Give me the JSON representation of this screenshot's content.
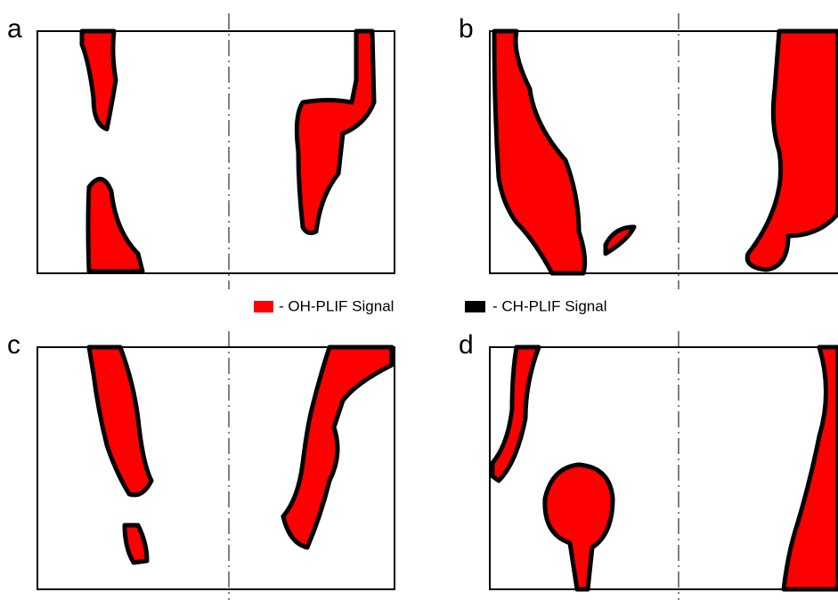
{
  "panels": [
    {
      "label": "a"
    },
    {
      "label": "b"
    },
    {
      "label": "c"
    },
    {
      "label": "d"
    }
  ],
  "legend": [
    {
      "label": "- OH-PLIF Signal",
      "color": "#ff0000"
    },
    {
      "label": "- CH-PLIF Signal",
      "color": "#000000"
    }
  ]
}
